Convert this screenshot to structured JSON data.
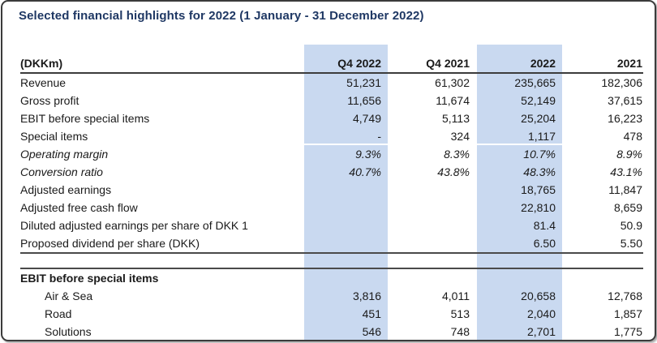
{
  "title": "Selected financial highlights for 2022 (1 January - 31 December 2022)",
  "colors": {
    "title_navy": "#1f3864",
    "highlight_blue": "#c9d9f0",
    "border_dark": "#3b3b3b"
  },
  "table": {
    "unit_header": "(DKKm)",
    "columns": [
      "Q4 2022",
      "Q4 2021",
      "2022",
      "2021"
    ],
    "highlighted_columns": [
      "Q4 2022",
      "2022"
    ],
    "rows": [
      {
        "label": "Revenue",
        "values": [
          "51,231",
          "61,302",
          "235,665",
          "182,306"
        ],
        "style": "normal"
      },
      {
        "label": "Gross profit",
        "values": [
          "11,656",
          "11,674",
          "52,149",
          "37,615"
        ],
        "style": "normal"
      },
      {
        "label": "EBIT before special items",
        "values": [
          "4,749",
          "5,113",
          "25,204",
          "16,223"
        ],
        "style": "normal"
      },
      {
        "label": "Special items",
        "values": [
          "-",
          "324",
          "1,117",
          "478"
        ],
        "style": "normal"
      },
      {
        "label": "Operating margin",
        "values": [
          "9.3%",
          "8.3%",
          "10.7%",
          "8.9%"
        ],
        "style": "italic"
      },
      {
        "label": "Conversion ratio",
        "values": [
          "40.7%",
          "43.8%",
          "48.3%",
          "43.1%"
        ],
        "style": "italic"
      },
      {
        "label": "Adjusted earnings",
        "values": [
          "",
          "",
          "18,765",
          "11,847"
        ],
        "style": "normal"
      },
      {
        "label": "Adjusted free cash flow",
        "values": [
          "",
          "",
          "22,810",
          "8,659"
        ],
        "style": "normal"
      },
      {
        "label": "Diluted adjusted earnings per share of DKK 1",
        "values": [
          "",
          "",
          "81.4",
          "50.9"
        ],
        "style": "normal"
      },
      {
        "label": "Proposed dividend per share (DKK)",
        "values": [
          "",
          "",
          "6.50",
          "5.50"
        ],
        "style": "normal"
      }
    ],
    "section2": {
      "header": "EBIT before special items",
      "rows": [
        {
          "label": "Air & Sea",
          "values": [
            "3,816",
            "4,011",
            "20,658",
            "12,768"
          ]
        },
        {
          "label": "Road",
          "values": [
            "451",
            "513",
            "2,040",
            "1,857"
          ]
        },
        {
          "label": "Solutions",
          "values": [
            "546",
            "748",
            "2,701",
            "1,775"
          ]
        }
      ]
    }
  }
}
